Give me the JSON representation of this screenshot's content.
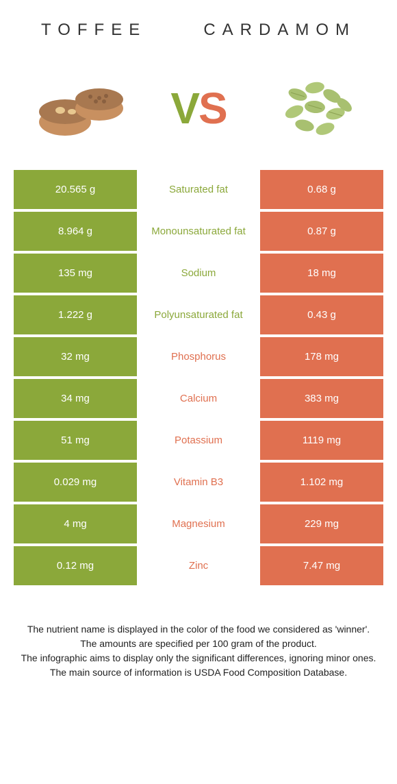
{
  "header": {
    "left_title": "Toffee",
    "right_title": "Cardamom"
  },
  "vs": {
    "v": "V",
    "s": "S"
  },
  "colors": {
    "green": "#8ba83a",
    "orange": "#e07050",
    "toffee_base": "#c89060",
    "toffee_top": "#a87850",
    "toffee_nut": "#e8c890",
    "cardamom_pod": "#a8c070",
    "cardamom_stripe": "#8aa050"
  },
  "rows": [
    {
      "left": "20.565 g",
      "label": "Saturated fat",
      "right": "0.68 g",
      "winner": "left"
    },
    {
      "left": "8.964 g",
      "label": "Monounsaturated fat",
      "right": "0.87 g",
      "winner": "left"
    },
    {
      "left": "135 mg",
      "label": "Sodium",
      "right": "18 mg",
      "winner": "left"
    },
    {
      "left": "1.222 g",
      "label": "Polyunsaturated fat",
      "right": "0.43 g",
      "winner": "left"
    },
    {
      "left": "32 mg",
      "label": "Phosphorus",
      "right": "178 mg",
      "winner": "right"
    },
    {
      "left": "34 mg",
      "label": "Calcium",
      "right": "383 mg",
      "winner": "right"
    },
    {
      "left": "51 mg",
      "label": "Potassium",
      "right": "1119 mg",
      "winner": "right"
    },
    {
      "left": "0.029 mg",
      "label": "Vitamin B3",
      "right": "1.102 mg",
      "winner": "right"
    },
    {
      "left": "4 mg",
      "label": "Magnesium",
      "right": "229 mg",
      "winner": "right"
    },
    {
      "left": "0.12 mg",
      "label": "Zinc",
      "right": "7.47 mg",
      "winner": "right"
    }
  ],
  "footer": {
    "line1": "The nutrient name is displayed in the color of the food we considered as 'winner'.",
    "line2": "The amounts are specified per 100 gram of the product.",
    "line3": "The infographic aims to display only the significant differences, ignoring minor ones.",
    "line4": "The main source of information is USDA Food Composition Database."
  }
}
